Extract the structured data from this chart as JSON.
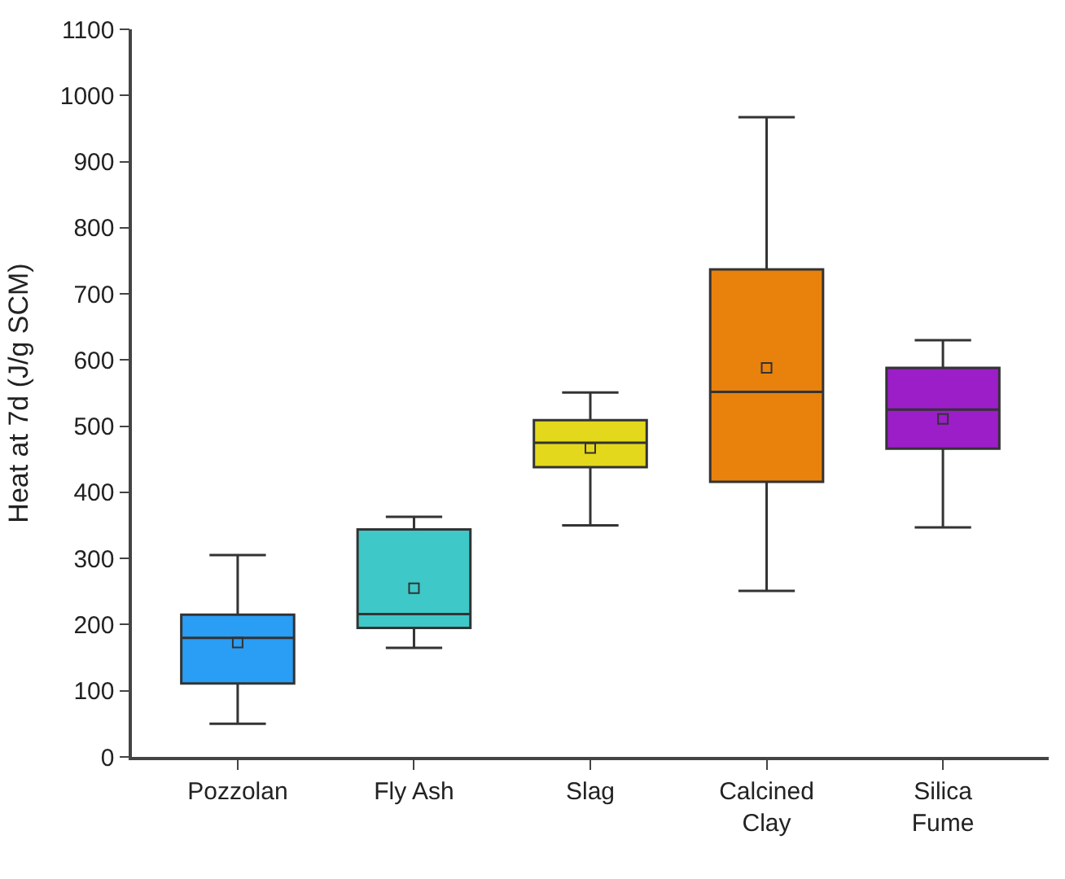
{
  "chart_data": {
    "type": "box",
    "ylabel": "Heat at 7d (J/g SCM)",
    "categories": [
      "Pozzolan",
      "Fly Ash",
      "Slag",
      "Calcined Clay",
      "Silica Fume"
    ],
    "colors": [
      "#2a9df4",
      "#3ec8c8",
      "#e4d81c",
      "#e8820c",
      "#9b1ec8"
    ],
    "boxes": [
      {
        "low": 50,
        "q1": 111,
        "median": 180,
        "q3": 215,
        "high": 305,
        "mean": 173
      },
      {
        "low": 165,
        "q1": 195,
        "median": 216,
        "q3": 344,
        "high": 363,
        "mean": 255
      },
      {
        "low": 350,
        "q1": 438,
        "median": 475,
        "q3": 509,
        "high": 551,
        "mean": 467
      },
      {
        "low": 251,
        "q1": 416,
        "median": 552,
        "q3": 737,
        "high": 967,
        "mean": 588
      },
      {
        "low": 347,
        "q1": 466,
        "median": 525,
        "q3": 588,
        "high": 630,
        "mean": 511
      }
    ],
    "ylim": [
      0,
      1100
    ],
    "yticks": [
      0,
      100,
      200,
      300,
      400,
      500,
      600,
      700,
      800,
      900,
      1000,
      1100
    ],
    "marker": "square"
  }
}
